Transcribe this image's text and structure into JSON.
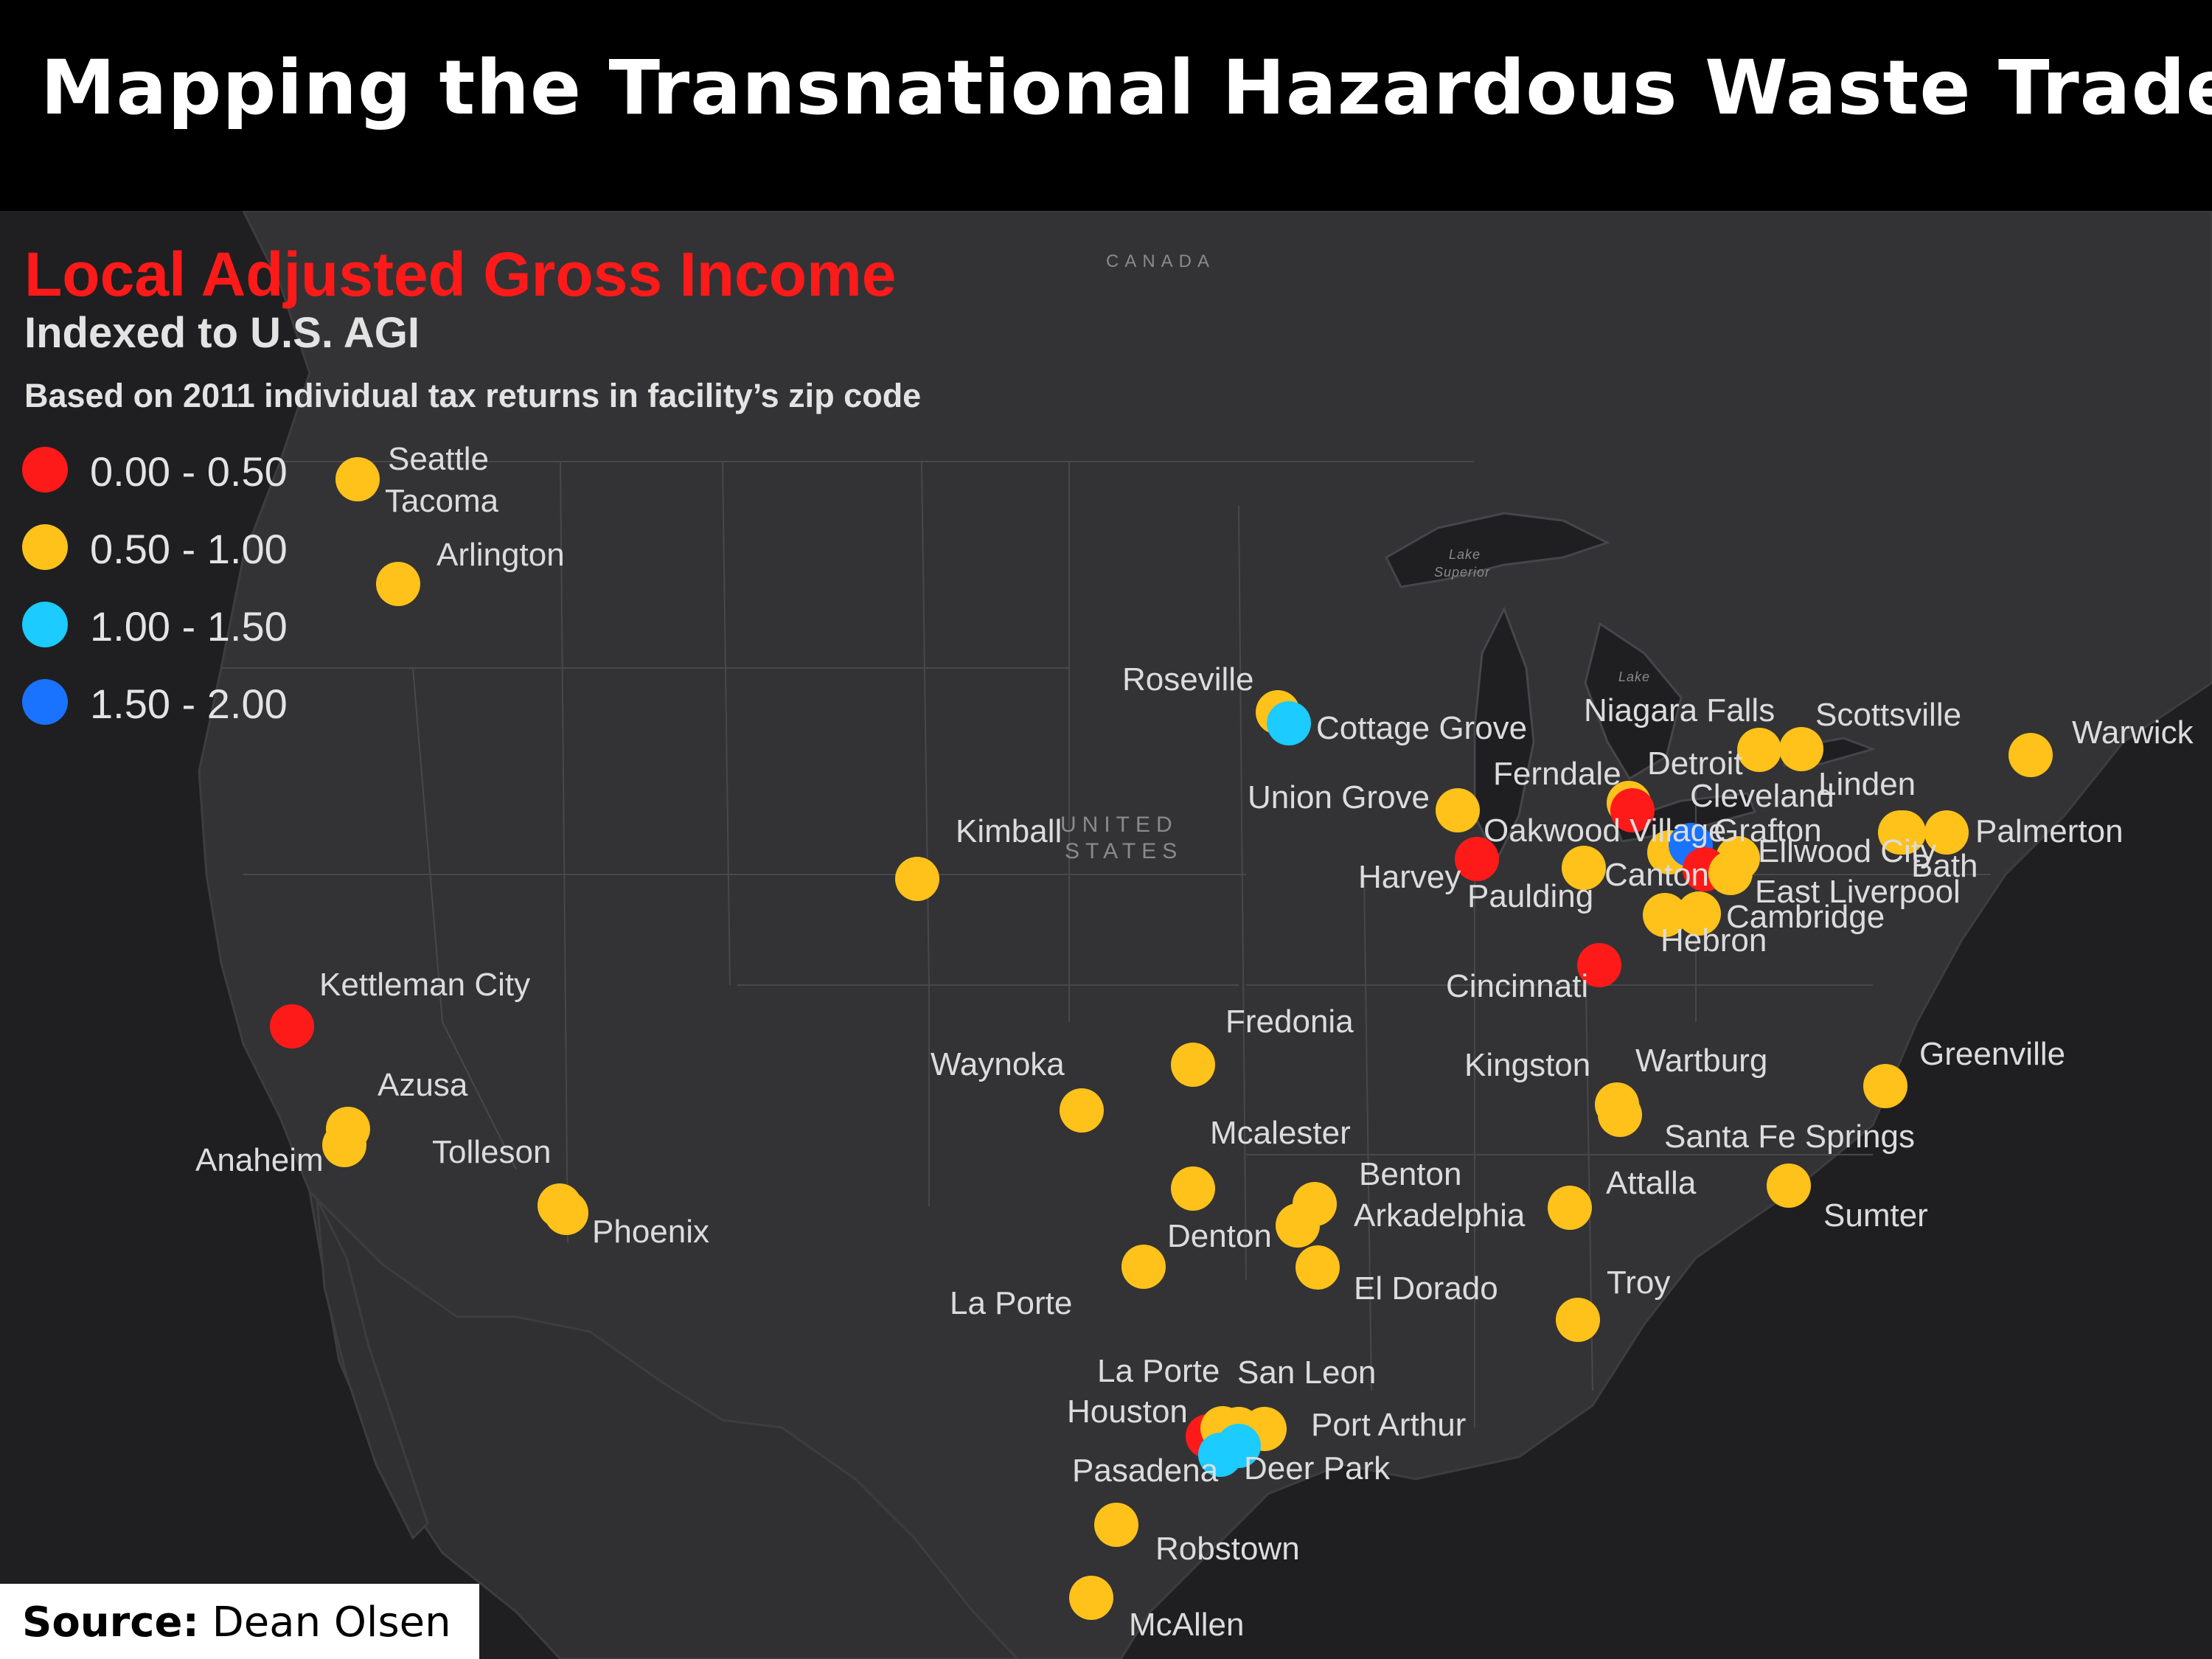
{
  "header": {
    "title": "Mapping the Transnational Hazardous Waste Trade"
  },
  "legend": {
    "title": "Local Adjusted Gross Income",
    "subtitle": "Indexed to U.S. AGI",
    "basis": "Based on 2011 individual tax returns in facility’s zip code",
    "classes": [
      {
        "label": "0.00 - 0.50",
        "color": "#ff1a1a"
      },
      {
        "label": "0.50 - 1.00",
        "color": "#ffc21a"
      },
      {
        "label": "1.00 - 1.50",
        "color": "#1ccbff"
      },
      {
        "label": "1.50 - 2.00",
        "color": "#1a73ff"
      }
    ]
  },
  "map": {
    "base_labels": {
      "canada": "CANADA",
      "united": "UNITED",
      "states": "STATES",
      "lake_superior_1": "Lake",
      "lake_superior_2": "Superior",
      "lake_huron": "Lake"
    },
    "sites": [
      {
        "id": "seattle-tacoma",
        "cls": 1
      },
      {
        "id": "arlington",
        "cls": 1
      },
      {
        "id": "kettleman-city",
        "cls": 0
      },
      {
        "id": "azusa",
        "cls": 1
      },
      {
        "id": "anaheim",
        "cls": 1
      },
      {
        "id": "tolleson",
        "cls": 1
      },
      {
        "id": "phoenix",
        "cls": 1
      },
      {
        "id": "kimball",
        "cls": 1
      },
      {
        "id": "roseville",
        "cls": 1
      },
      {
        "id": "cottage-grove",
        "cls": 2
      },
      {
        "id": "union-grove",
        "cls": 1
      },
      {
        "id": "harvey",
        "cls": 0
      },
      {
        "id": "paulding",
        "cls": 1
      },
      {
        "id": "ferndale",
        "cls": 1
      },
      {
        "id": "detroit",
        "cls": 0
      },
      {
        "id": "oakwood-village",
        "cls": 1
      },
      {
        "id": "cleveland",
        "cls": 3
      },
      {
        "id": "grafton",
        "cls": 1
      },
      {
        "id": "canton",
        "cls": 0
      },
      {
        "id": "east-liverpool",
        "cls": 1
      },
      {
        "id": "hebron",
        "cls": 1
      },
      {
        "id": "cambridge",
        "cls": 1
      },
      {
        "id": "cincinnati",
        "cls": 0
      },
      {
        "id": "niagara-falls",
        "cls": 1
      },
      {
        "id": "scottsville",
        "cls": 1
      },
      {
        "id": "linden",
        "cls": 1
      },
      {
        "id": "ellwood-city",
        "cls": 1
      },
      {
        "id": "palmerton",
        "cls": 1
      },
      {
        "id": "warwick",
        "cls": 1
      },
      {
        "id": "fredonia",
        "cls": 1
      },
      {
        "id": "waynoka",
        "cls": 1
      },
      {
        "id": "kingston",
        "cls": 1
      },
      {
        "id": "wartburg",
        "cls": 1
      },
      {
        "id": "greenville",
        "cls": 1
      },
      {
        "id": "santa-fe-springs",
        "cls": 1
      },
      {
        "id": "mcalester",
        "cls": 1
      },
      {
        "id": "benton",
        "cls": 1
      },
      {
        "id": "arkadelphia",
        "cls": 1
      },
      {
        "id": "el-dorado",
        "cls": 1
      },
      {
        "id": "denton",
        "cls": 1
      },
      {
        "id": "attalla",
        "cls": 1
      },
      {
        "id": "troy",
        "cls": 1
      },
      {
        "id": "houston",
        "cls": 0
      },
      {
        "id": "la-porte",
        "cls": 1
      },
      {
        "id": "san-leon",
        "cls": 1
      },
      {
        "id": "port-arthur",
        "cls": 1
      },
      {
        "id": "pasadena",
        "cls": 2
      },
      {
        "id": "deer-park",
        "cls": 2
      },
      {
        "id": "robstown",
        "cls": 1
      },
      {
        "id": "mcallen",
        "cls": 1
      }
    ],
    "labels": [
      {
        "text": "Seattle"
      },
      {
        "text": "Tacoma"
      },
      {
        "text": "Arlington"
      },
      {
        "text": "Kettleman City"
      },
      {
        "text": "Azusa"
      },
      {
        "text": "Anaheim"
      },
      {
        "text": "Tolleson"
      },
      {
        "text": "Phoenix"
      },
      {
        "text": "Kimball"
      },
      {
        "text": "Roseville"
      },
      {
        "text": "Cottage Grove"
      },
      {
        "text": "Union Grove"
      },
      {
        "text": "Harvey"
      },
      {
        "text": "Paulding"
      },
      {
        "text": "Ferndale"
      },
      {
        "text": "Detroit"
      },
      {
        "text": "Oakwood Village"
      },
      {
        "text": "Cleveland"
      },
      {
        "text": "Grafton"
      },
      {
        "text": "Canton"
      },
      {
        "text": "East Liverpool"
      },
      {
        "text": "Cambridge"
      },
      {
        "text": "Hebron"
      },
      {
        "text": "Cincinnati"
      },
      {
        "text": "Niagara Falls"
      },
      {
        "text": "Scottsville"
      },
      {
        "text": "Linden"
      },
      {
        "text": "Ellwood City"
      },
      {
        "text": "Bath"
      },
      {
        "text": "Palmerton"
      },
      {
        "text": "Warwick"
      },
      {
        "text": "Fredonia"
      },
      {
        "text": "Waynoka"
      },
      {
        "text": "Kingston"
      },
      {
        "text": "Wartburg"
      },
      {
        "text": "Greenville"
      },
      {
        "text": "Santa Fe Springs"
      },
      {
        "text": "Sumter"
      },
      {
        "text": "Mcalester"
      },
      {
        "text": "Benton"
      },
      {
        "text": "Arkadelphia"
      },
      {
        "text": "El Dorado"
      },
      {
        "text": "Denton"
      },
      {
        "text": "La Porte"
      },
      {
        "text": "Attalla"
      },
      {
        "text": "Troy"
      },
      {
        "text": "La Porte"
      },
      {
        "text": "San Leon"
      },
      {
        "text": "Houston"
      },
      {
        "text": "Port Arthur"
      },
      {
        "text": "Pasadena"
      },
      {
        "text": "Deer Park"
      },
      {
        "text": "Robstown"
      },
      {
        "text": "McAllen"
      }
    ]
  },
  "source": {
    "prefix": "Source:",
    "name": "Dean Olsen"
  }
}
